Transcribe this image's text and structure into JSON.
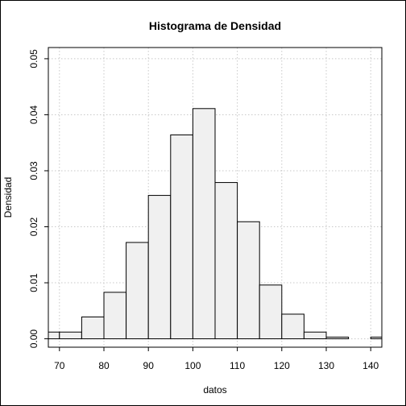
{
  "chart_data": {
    "type": "bar",
    "title": "Histograma de Densidad",
    "xlabel": "datos",
    "ylabel": "Densidad",
    "xlim": [
      67.5,
      142.5
    ],
    "ylim": [
      -0.0015,
      0.052
    ],
    "x_ticks": [
      70,
      80,
      90,
      100,
      110,
      120,
      130,
      140
    ],
    "y_ticks": [
      0.0,
      0.01,
      0.02,
      0.03,
      0.04,
      0.05
    ],
    "y_tick_labels": [
      "0.00",
      "0.01",
      "0.02",
      "0.03",
      "0.04",
      "0.05"
    ],
    "grid": true,
    "bar_color": "#f0f0f0",
    "bins": [
      {
        "start": 65,
        "end": 70,
        "density": 0.0012
      },
      {
        "start": 70,
        "end": 75,
        "density": 0.0012
      },
      {
        "start": 75,
        "end": 80,
        "density": 0.0039
      },
      {
        "start": 80,
        "end": 85,
        "density": 0.0083
      },
      {
        "start": 85,
        "end": 90,
        "density": 0.0172
      },
      {
        "start": 90,
        "end": 95,
        "density": 0.0256
      },
      {
        "start": 95,
        "end": 100,
        "density": 0.0364
      },
      {
        "start": 100,
        "end": 105,
        "density": 0.0411
      },
      {
        "start": 105,
        "end": 110,
        "density": 0.0279
      },
      {
        "start": 110,
        "end": 115,
        "density": 0.0209
      },
      {
        "start": 115,
        "end": 120,
        "density": 0.0096
      },
      {
        "start": 120,
        "end": 125,
        "density": 0.0044
      },
      {
        "start": 125,
        "end": 130,
        "density": 0.0012
      },
      {
        "start": 130,
        "end": 135,
        "density": 0.0003
      },
      {
        "start": 135,
        "end": 140,
        "density": 0.0
      },
      {
        "start": 140,
        "end": 145,
        "density": 0.0003
      }
    ]
  }
}
